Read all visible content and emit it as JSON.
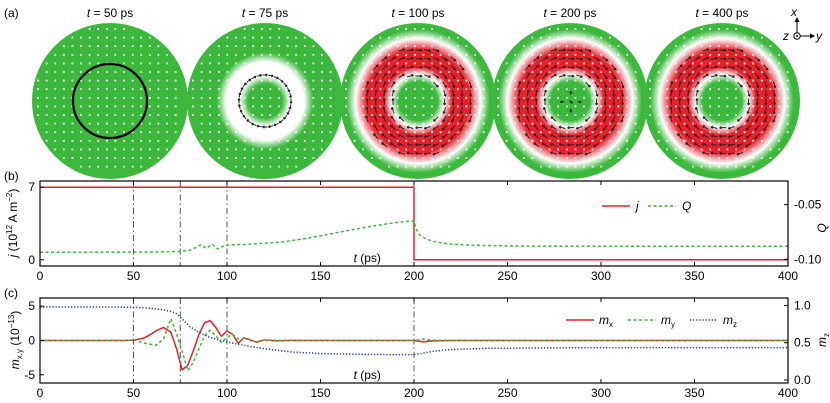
{
  "colors": {
    "red": "#e8202a",
    "green": "#3cb83c",
    "blue": "#2440a8",
    "vline": "#555555"
  },
  "chart_data": [
    {
      "panel": "(a)",
      "type": "heatmap",
      "snapshots": [
        {
          "title": "t = 50 ps",
          "t_label": "t",
          "rest": " = 50 ps",
          "ring_fill": 0.0,
          "outline": true,
          "arrows": "none"
        },
        {
          "title": "t = 75 ps",
          "t_label": "t",
          "rest": " = 75 ps",
          "ring_fill": 0.35,
          "outline": false,
          "arrows": "small"
        },
        {
          "title": "t = 100 ps",
          "t_label": "t",
          "rest": " = 100 ps",
          "ring_fill": 1.0,
          "outline": false,
          "arrows": "ring"
        },
        {
          "title": "t = 200 ps",
          "t_label": "t",
          "rest": " = 200 ps",
          "ring_fill": 1.0,
          "outline": false,
          "arrows": "ring_core"
        },
        {
          "title": "t = 400 ps",
          "t_label": "t",
          "rest": " = 400 ps",
          "ring_fill": 1.0,
          "outline": false,
          "arrows": "ring"
        }
      ],
      "axes_labels": {
        "x": "x",
        "y": "y",
        "z": "z"
      }
    },
    {
      "panel": "(b)",
      "type": "line",
      "xlim": [
        0,
        400
      ],
      "xticks": [
        0,
        50,
        100,
        150,
        200,
        250,
        300,
        350,
        400
      ],
      "xlabel": "t (ps)",
      "ylabel_left": "j (10¹² A m⁻²)",
      "ylabel_left_parts": {
        "var": "j",
        "unit_a": " (10",
        "exp1": "12",
        "unit_b": " A m",
        "exp2": "−2",
        "unit_c": ")"
      },
      "ylim_left": [
        -0.6,
        7.6
      ],
      "yticks_left": [
        0,
        7
      ],
      "ylabel_right": "Q",
      "ylim_right": [
        -0.1061,
        -0.0284
      ],
      "yticks_right": [
        -0.05,
        -0.1
      ],
      "ytick_labels_right": [
        "-0.05",
        "-0.10"
      ],
      "vlines": [
        50,
        75,
        100,
        200
      ],
      "series": [
        {
          "name": "j",
          "axis": "left",
          "style": "solid",
          "color": "#e8202a",
          "x": [
            0,
            200,
            200,
            400
          ],
          "y": [
            7,
            7,
            0,
            0
          ]
        },
        {
          "name": "Q",
          "axis": "right",
          "style": "dashed",
          "color": "#3cb83c",
          "x": [
            0,
            20,
            40,
            55,
            65,
            70,
            75,
            80,
            83,
            86,
            89,
            92,
            95,
            98,
            101,
            105,
            110,
            120,
            130,
            140,
            150,
            160,
            170,
            180,
            190,
            198,
            200,
            201,
            203,
            206,
            210,
            215,
            220,
            230,
            245,
            260,
            300,
            350,
            400
          ],
          "y": [
            -0.0935,
            -0.0935,
            -0.0934,
            -0.0933,
            -0.0932,
            -0.093,
            -0.0927,
            -0.0918,
            -0.0895,
            -0.0868,
            -0.09,
            -0.0862,
            -0.0905,
            -0.088,
            -0.087,
            -0.0866,
            -0.0863,
            -0.0853,
            -0.084,
            -0.0815,
            -0.0785,
            -0.0752,
            -0.072,
            -0.069,
            -0.0665,
            -0.065,
            -0.0648,
            -0.072,
            -0.0776,
            -0.081,
            -0.0835,
            -0.0851,
            -0.0861,
            -0.087,
            -0.0876,
            -0.0879,
            -0.088,
            -0.088,
            -0.088
          ]
        }
      ],
      "legend": {
        "placement": "top-right",
        "entries": [
          "j",
          "Q"
        ]
      }
    },
    {
      "panel": "(c)",
      "type": "line",
      "xlim": [
        0,
        400
      ],
      "xticks": [
        0,
        50,
        100,
        150,
        200,
        250,
        300,
        350,
        400
      ],
      "xlabel": "t (ps)",
      "ylabel_left": "m_x,y (10⁻¹³)",
      "ylabel_left_parts": {
        "var": "m",
        "sub": "x,y",
        "unit_a": " (10",
        "exp": "−13",
        "unit_b": ")"
      },
      "ylim_left": [
        -6.2,
        6.2
      ],
      "yticks_left": [
        5,
        0,
        -5
      ],
      "ytick_labels_left": [
        "5",
        "0",
        "-5"
      ],
      "ylabel_right": "m_z",
      "ylabel_right_parts": {
        "var": "m",
        "sub": "z"
      },
      "ylim_right": [
        -0.04,
        1.1
      ],
      "yticks_right": [
        1.0,
        0.5,
        0.0
      ],
      "ytick_labels_right": [
        "1.0",
        "0.5",
        "0.0"
      ],
      "vlines": [
        50,
        75,
        100,
        200
      ],
      "series": [
        {
          "name": "m_x",
          "axis": "left",
          "style": "solid",
          "color": "#e8202a",
          "x": [
            0,
            45,
            50,
            55,
            58,
            62,
            66,
            70,
            73,
            76,
            79,
            82,
            85,
            88,
            91,
            94,
            97,
            100,
            103,
            106,
            109,
            112,
            116,
            120,
            126,
            135,
            145,
            200,
            205,
            210,
            220,
            400
          ],
          "y": [
            0,
            0,
            0.05,
            0.3,
            0.7,
            1.4,
            1.9,
            1.2,
            -1.2,
            -4.3,
            -3.6,
            -1.5,
            0.9,
            2.6,
            2.9,
            1.9,
            0.6,
            1.4,
            0.9,
            -0.4,
            0.4,
            0.1,
            -0.25,
            0.1,
            -0.05,
            0.02,
            0,
            0,
            -0.2,
            -0.05,
            0,
            0
          ]
        },
        {
          "name": "m_y",
          "axis": "left",
          "style": "dashed",
          "color": "#3cb83c",
          "x": [
            0,
            45,
            50,
            56,
            62,
            66,
            70,
            73,
            76,
            79,
            82,
            85,
            88,
            91,
            94,
            97,
            100,
            103,
            106,
            110,
            115,
            120,
            130,
            140,
            200,
            205,
            210,
            220,
            400
          ],
          "y": [
            0,
            0,
            0.1,
            -0.4,
            -0.7,
            0.2,
            3.2,
            1.0,
            -1.6,
            -4.4,
            -3.2,
            -1.2,
            0.7,
            1.5,
            0.7,
            -0.3,
            0.5,
            0.9,
            0.2,
            0.4,
            -0.2,
            0.1,
            0,
            0,
            0,
            0.2,
            0.05,
            0,
            0
          ]
        },
        {
          "name": "m_z",
          "axis": "right",
          "style": "dotted",
          "color": "#2440a8",
          "x": [
            0,
            40,
            50,
            55,
            60,
            65,
            70,
            73,
            76,
            80,
            85,
            90,
            95,
            100,
            110,
            120,
            135,
            150,
            170,
            190,
            199,
            200,
            205,
            210,
            220,
            240,
            270,
            300,
            350,
            400
          ],
          "y": [
            0.98,
            0.98,
            0.975,
            0.97,
            0.96,
            0.945,
            0.92,
            0.89,
            0.82,
            0.72,
            0.64,
            0.58,
            0.54,
            0.51,
            0.46,
            0.42,
            0.375,
            0.355,
            0.345,
            0.34,
            0.34,
            0.34,
            0.36,
            0.385,
            0.41,
            0.425,
            0.43,
            0.435,
            0.435,
            0.435
          ]
        }
      ],
      "legend": {
        "placement": "top-right",
        "entries": [
          "m_x",
          "m_y",
          "m_z"
        ],
        "entries_parts": [
          {
            "var": "m",
            "sub": "x"
          },
          {
            "var": "m",
            "sub": "y"
          },
          {
            "var": "m",
            "sub": "z"
          }
        ]
      }
    }
  ]
}
